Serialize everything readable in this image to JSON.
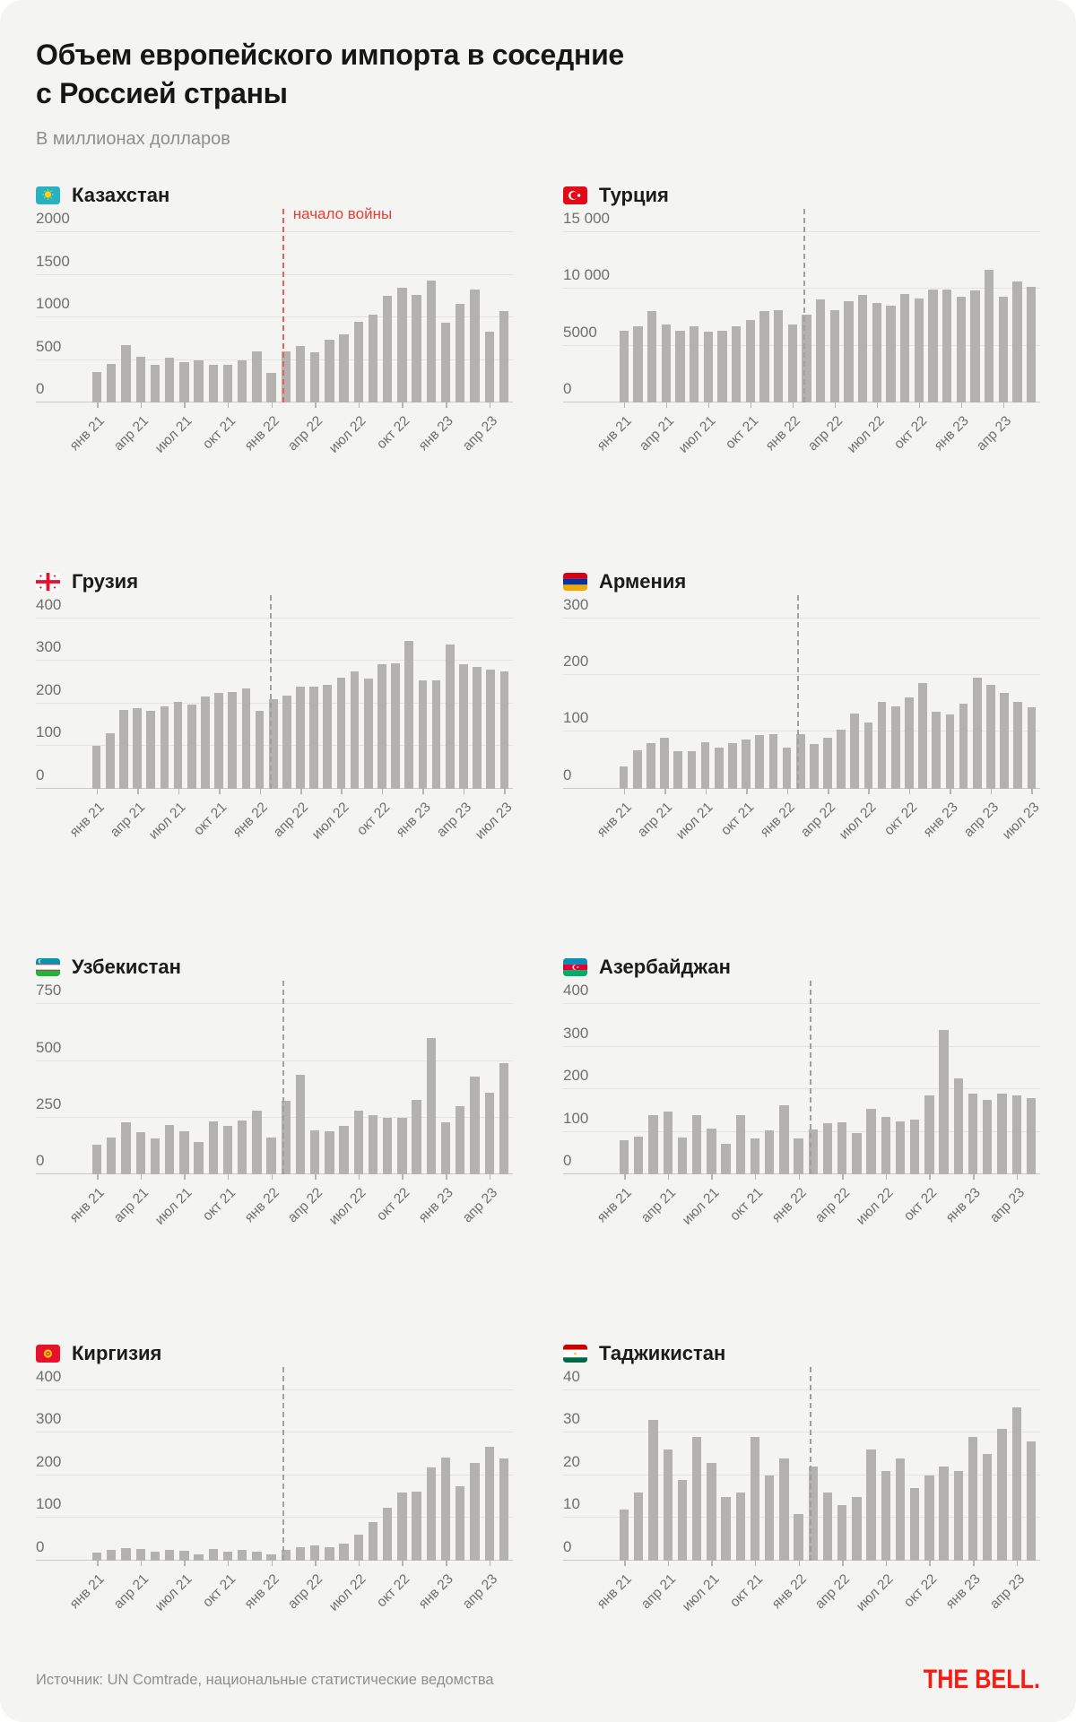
{
  "title": "Объем европейского импорта в соседние\nс Россией страны",
  "subtitle": "В миллионах долларов",
  "war_label": "начало войны",
  "footer": {
    "source": "Источник: UN Comtrade, национальные статистические ведомства",
    "logo": "THE BELL."
  },
  "colors": {
    "background": "#f4f4f2",
    "bar_gray": "#b3b2af",
    "accent_red": "#ee3d30",
    "logo_red": "#fb1a10",
    "axis_text": "#6f6f6d"
  },
  "chart_data": [
    {
      "type": "bar",
      "country": "Казахстан",
      "flag": "kz",
      "ymax": 2000,
      "ytick_labels": [
        "2000",
        "1500",
        "1000",
        "500",
        "0"
      ],
      "x_tick_labels": [
        "янв 21",
        "апр 21",
        "июл 21",
        "окт 21",
        "янв 22",
        "апр 22",
        "июл 22",
        "окт 22",
        "янв 23",
        "апр 23"
      ],
      "x_tick_step": 3,
      "war_month_index": 13,
      "war_line_style": "red",
      "show_war_label": true,
      "values": [
        355,
        455,
        670,
        535,
        445,
        530,
        475,
        500,
        445,
        445,
        490,
        605,
        345,
        595,
        665,
        590,
        740,
        800,
        945,
        1035,
        1250,
        1345,
        1265,
        1430,
        935,
        1160,
        1330,
        830,
        1070
      ]
    },
    {
      "type": "bar",
      "country": "Турция",
      "flag": "tr",
      "ymax": 15000,
      "ytick_labels": [
        "15 000",
        "10 000",
        "5000",
        "0"
      ],
      "x_tick_labels": [
        "янв 21",
        "апр 21",
        "июл 21",
        "окт 21",
        "янв 22",
        "апр 22",
        "июл 22",
        "окт 22",
        "янв 23",
        "апр 23"
      ],
      "x_tick_step": 3,
      "war_month_index": 13,
      "war_line_style": "gray",
      "show_war_label": false,
      "values": [
        6350,
        6750,
        8050,
        6900,
        6300,
        6750,
        6200,
        6300,
        6750,
        7300,
        8050,
        8100,
        6900,
        7750,
        9050,
        8100,
        8900,
        9500,
        8750,
        8500,
        9550,
        9150,
        9950,
        9950,
        9300,
        9850,
        11650,
        9300,
        10650,
        10200
      ]
    },
    {
      "type": "bar",
      "country": "Грузия",
      "flag": "ge",
      "ymax": 400,
      "ytick_labels": [
        "400",
        "300",
        "200",
        "100",
        "0"
      ],
      "x_tick_labels": [
        "янв 21",
        "апр 21",
        "июл 21",
        "окт 21",
        "янв 22",
        "апр 22",
        "июл 22",
        "окт 22",
        "янв 23",
        "апр 23",
        "июл 23"
      ],
      "x_tick_step": 3,
      "war_month_index": 13,
      "war_line_style": "gray",
      "show_war_label": false,
      "values": [
        100,
        130,
        185,
        188,
        182,
        193,
        204,
        197,
        216,
        224,
        227,
        236,
        183,
        209,
        219,
        240,
        239,
        243,
        261,
        275,
        259,
        291,
        295,
        347,
        254,
        254,
        339,
        291,
        285,
        280,
        275
      ]
    },
    {
      "type": "bar",
      "country": "Армения",
      "flag": "am",
      "ymax": 300,
      "ytick_labels": [
        "300",
        "200",
        "100",
        "0"
      ],
      "x_tick_labels": [
        "янв 21",
        "апр 21",
        "июл 21",
        "окт 21",
        "янв 22",
        "апр 22",
        "июл 22",
        "окт 22",
        "янв 23",
        "апр 23",
        "июл 23"
      ],
      "x_tick_step": 3,
      "war_month_index": 13,
      "war_line_style": "gray",
      "show_war_label": false,
      "values": [
        39,
        67,
        80,
        90,
        65,
        65,
        81,
        72,
        80,
        87,
        94,
        95,
        72,
        95,
        78,
        89,
        103,
        132,
        116,
        153,
        144,
        160,
        185,
        135,
        131,
        150,
        196,
        183,
        168,
        152,
        143
      ]
    },
    {
      "type": "bar",
      "country": "Узбекистан",
      "flag": "uz",
      "ymax": 750,
      "ytick_labels": [
        "750",
        "500",
        "250",
        "0"
      ],
      "x_tick_labels": [
        "янв 21",
        "апр 21",
        "июл 21",
        "окт 21",
        "янв 22",
        "апр 22",
        "июл 22",
        "окт 22",
        "янв 23",
        "апр 23"
      ],
      "x_tick_step": 3,
      "war_month_index": 13,
      "war_line_style": "gray",
      "show_war_label": false,
      "values": [
        130,
        165,
        230,
        185,
        160,
        220,
        190,
        145,
        235,
        215,
        240,
        280,
        165,
        325,
        440,
        195,
        190,
        215,
        280,
        260,
        250,
        250,
        330,
        600,
        230,
        300,
        430,
        360,
        490
      ]
    },
    {
      "type": "bar",
      "country": "Азербайджан",
      "flag": "az",
      "ymax": 400,
      "ytick_labels": [
        "400",
        "300",
        "200",
        "100",
        "0"
      ],
      "x_tick_labels": [
        "янв 21",
        "апр 21",
        "июл 21",
        "окт 21",
        "янв 22",
        "апр 22",
        "июл 22",
        "окт 22",
        "янв 23",
        "апр 23"
      ],
      "x_tick_step": 3,
      "war_month_index": 13,
      "war_line_style": "gray",
      "show_war_label": false,
      "values": [
        80,
        90,
        140,
        148,
        88,
        140,
        108,
        72,
        140,
        85,
        103,
        163,
        85,
        107,
        120,
        122,
        98,
        155,
        135,
        125,
        130,
        185,
        340,
        225,
        190,
        175,
        190,
        185,
        180
      ]
    },
    {
      "type": "bar",
      "country": "Киргизия",
      "flag": "kg",
      "ymax": 400,
      "ytick_labels": [
        "400",
        "300",
        "200",
        "100",
        "0"
      ],
      "x_tick_labels": [
        "янв 21",
        "апр 21",
        "июл 21",
        "окт 21",
        "янв 22",
        "апр 22",
        "июл 22",
        "окт 22",
        "янв 23",
        "апр 23"
      ],
      "x_tick_step": 3,
      "war_month_index": 13,
      "war_line_style": "gray",
      "show_war_label": false,
      "values": [
        18,
        25,
        30,
        27,
        20,
        25,
        24,
        15,
        28,
        20,
        26,
        20,
        15,
        25,
        32,
        35,
        32,
        40,
        60,
        90,
        125,
        160,
        162,
        218,
        243,
        175,
        230,
        268,
        240
      ]
    },
    {
      "type": "bar",
      "country": "Таджикистан",
      "flag": "tj",
      "ymax": 40,
      "ytick_labels": [
        "40",
        "30",
        "20",
        "10",
        "0"
      ],
      "x_tick_labels": [
        "янв 21",
        "апр 21",
        "июл 21",
        "окт 21",
        "янв 22",
        "апр 22",
        "июл 22",
        "окт 22",
        "янв 23",
        "апр 23"
      ],
      "x_tick_step": 3,
      "war_month_index": 13,
      "war_line_style": "gray",
      "show_war_label": false,
      "values": [
        12,
        16,
        33,
        26,
        19,
        29,
        23,
        15,
        16,
        29,
        20,
        24,
        11,
        22,
        16,
        13,
        15,
        26,
        21,
        24,
        17,
        20,
        22,
        21,
        29,
        25,
        31,
        36,
        28
      ]
    }
  ]
}
